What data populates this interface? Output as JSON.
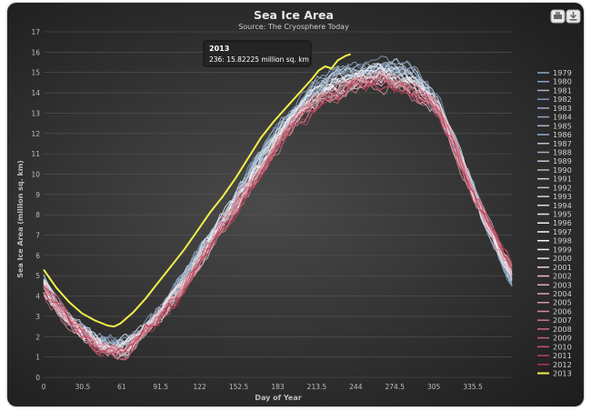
{
  "chart_data": {
    "type": "line",
    "title": "Sea Ice Area",
    "subtitle": "Source: The Cryosphere Today",
    "xlabel": "Day of Year",
    "ylabel": "Sea Ice Area (million sq. km)",
    "xlim": [
      0,
      366
    ],
    "ylim": [
      0,
      17
    ],
    "x_ticks": [
      "0",
      "30.5",
      "61",
      "91.5",
      "122",
      "152.5",
      "183",
      "213.5",
      "244",
      "274.5",
      "305",
      "335.5"
    ],
    "x_tick_values": [
      0,
      30.5,
      61,
      91.5,
      122,
      152.5,
      183,
      213.5,
      244,
      274.5,
      305,
      335.5
    ],
    "y_ticks": [
      0,
      1,
      2,
      3,
      4,
      5,
      6,
      7,
      8,
      9,
      10,
      11,
      12,
      13,
      14,
      15,
      16,
      17
    ],
    "legend_position": "right",
    "grid": true,
    "series": [
      {
        "name": "1979",
        "color": "#8fa9c4"
      },
      {
        "name": "1980",
        "color": "#8aa3bf"
      },
      {
        "name": "1981",
        "color": "#a0b6cd"
      },
      {
        "name": "1982",
        "color": "#7f9cb9"
      },
      {
        "name": "1983",
        "color": "#98aec7"
      },
      {
        "name": "1984",
        "color": "#8ca6c0"
      },
      {
        "name": "1985",
        "color": "#a7bcd2"
      },
      {
        "name": "1986",
        "color": "#93abc5"
      },
      {
        "name": "1987",
        "color": "#b3c5d8"
      },
      {
        "name": "1988",
        "color": "#9db3cb"
      },
      {
        "name": "1989",
        "color": "#bccce0"
      },
      {
        "name": "1990",
        "color": "#aabfd4"
      },
      {
        "name": "1991",
        "color": "#c6d4e4"
      },
      {
        "name": "1992",
        "color": "#b5c7da"
      },
      {
        "name": "1993",
        "color": "#cfdbea"
      },
      {
        "name": "1994",
        "color": "#d8e2ee"
      },
      {
        "name": "1995",
        "color": "#e2e9f2"
      },
      {
        "name": "1996",
        "color": "#ecf0f6"
      },
      {
        "name": "1997",
        "color": "#f4f6f9"
      },
      {
        "name": "1998",
        "color": "#ffffff"
      },
      {
        "name": "1999",
        "color": "#fbeef0"
      },
      {
        "name": "2000",
        "color": "#f6dfe3"
      },
      {
        "name": "2001",
        "color": "#f0d0d6"
      },
      {
        "name": "2002",
        "color": "#ebc2ca"
      },
      {
        "name": "2003",
        "color": "#e6b4be"
      },
      {
        "name": "2004",
        "color": "#e0a6b1"
      },
      {
        "name": "2005",
        "color": "#da98a5"
      },
      {
        "name": "2006",
        "color": "#d58a99"
      },
      {
        "name": "2007",
        "color": "#cf7c8d"
      },
      {
        "name": "2008",
        "color": "#ca6e81"
      },
      {
        "name": "2009",
        "color": "#c46075"
      },
      {
        "name": "2010",
        "color": "#bf5369"
      },
      {
        "name": "2011",
        "color": "#b9455d"
      },
      {
        "name": "2012",
        "color": "#b33751"
      },
      {
        "name": "2013",
        "color": "#f2ee4a"
      }
    ],
    "highlight": {
      "name": "2013",
      "color": "#f2ee4a",
      "x": [
        0,
        10,
        20,
        30,
        40,
        50,
        55,
        60,
        70,
        80,
        90,
        100,
        110,
        120,
        130,
        140,
        150,
        160,
        170,
        180,
        190,
        200,
        210,
        215,
        220,
        225,
        230,
        236,
        240
      ],
      "values": [
        5.3,
        4.4,
        3.7,
        3.15,
        2.8,
        2.55,
        2.5,
        2.65,
        3.2,
        3.9,
        4.7,
        5.5,
        6.3,
        7.2,
        8.1,
        8.9,
        9.8,
        10.8,
        11.8,
        12.6,
        13.3,
        14.0,
        14.7,
        15.1,
        15.3,
        15.2,
        15.6,
        15.82,
        15.9
      ]
    },
    "base_curve": {
      "x": [
        0,
        10,
        20,
        30,
        40,
        50,
        58,
        65,
        75,
        90,
        105,
        120,
        135,
        150,
        165,
        180,
        195,
        210,
        225,
        240,
        250,
        260,
        270,
        280,
        290,
        300,
        310,
        320,
        330,
        340,
        350,
        360,
        366
      ],
      "values": [
        4.9,
        3.9,
        3.1,
        2.5,
        2.05,
        1.8,
        1.75,
        1.85,
        2.3,
        3.3,
        4.5,
        5.9,
        7.3,
        8.7,
        10.2,
        11.6,
        12.8,
        13.8,
        14.4,
        14.7,
        14.8,
        14.9,
        14.95,
        14.8,
        14.5,
        13.9,
        13.0,
        11.6,
        10.0,
        8.4,
        7.0,
        5.6,
        4.8
      ]
    },
    "tooltip": {
      "title": "2013",
      "body": "236: 15.82225 million sq. km"
    }
  },
  "toolbar": {
    "print_icon": "print-icon",
    "export_icon": "download-icon"
  }
}
